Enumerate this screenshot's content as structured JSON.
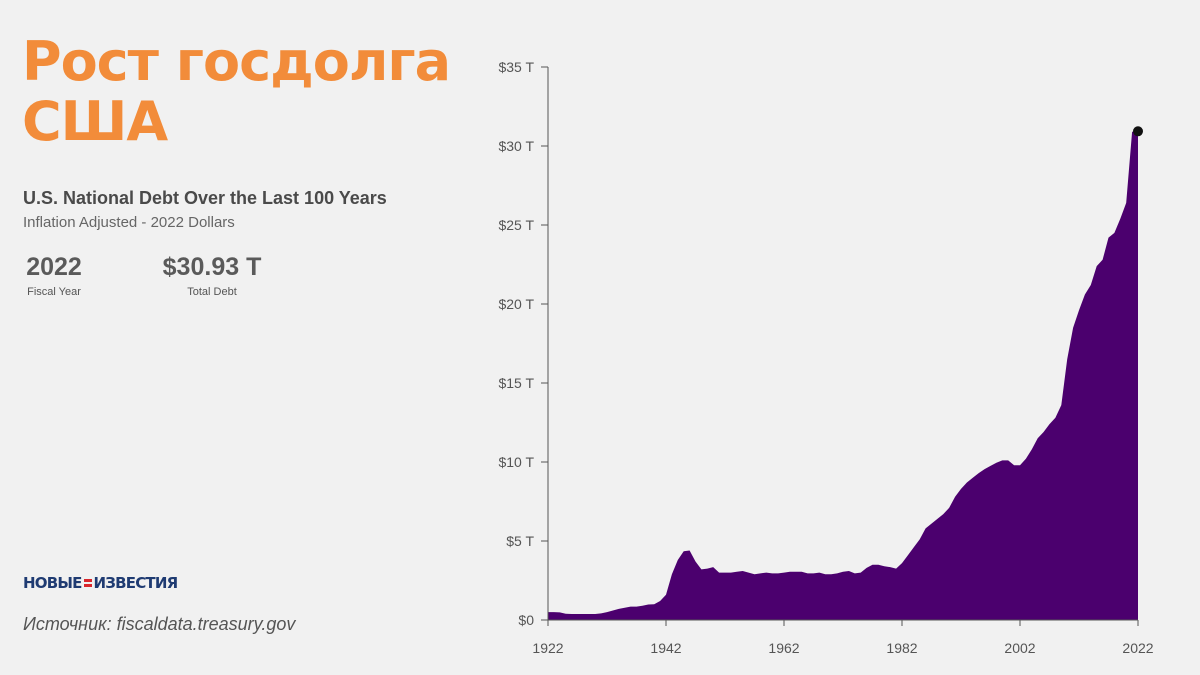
{
  "header": {
    "title_line1": "Рост госдолга",
    "title_line2": "США",
    "subtitle": "U.S. National Debt Over the Last 100 Years",
    "subtitle2": "Inflation Adjusted - 2022 Dollars"
  },
  "stats": {
    "year_value": "2022",
    "year_label": "Fiscal Year",
    "debt_value": "$30.93 T",
    "debt_label": "Total Debt"
  },
  "logo": {
    "left": "НОВЫЕ",
    "right": "ИЗВЕСТИЯ"
  },
  "source": "Источник: fiscaldata.treasury.gov",
  "colors": {
    "accent": "#f28c3a",
    "area_fill": "#4b006e",
    "highlight_point": "#111111"
  },
  "chart_data": {
    "type": "area",
    "title": "U.S. National Debt Over the Last 100 Years",
    "subtitle": "Inflation Adjusted - 2022 Dollars",
    "xlabel": "",
    "ylabel": "",
    "xlim": [
      1922,
      2022
    ],
    "ylim": [
      0,
      35
    ],
    "x_ticks": [
      {
        "value": 1922,
        "label": "1922"
      },
      {
        "value": 1942,
        "label": "1942"
      },
      {
        "value": 1962,
        "label": "1962"
      },
      {
        "value": 1982,
        "label": "1982"
      },
      {
        "value": 2002,
        "label": "2002"
      },
      {
        "value": 2022,
        "label": "2022"
      }
    ],
    "y_ticks": [
      {
        "value": 0,
        "label": "$0"
      },
      {
        "value": 5,
        "label": "$5 T"
      },
      {
        "value": 10,
        "label": "$10 T"
      },
      {
        "value": 15,
        "label": "$15 T"
      },
      {
        "value": 20,
        "label": "$20 T"
      },
      {
        "value": 25,
        "label": "$25 T"
      },
      {
        "value": 30,
        "label": "$30 T"
      },
      {
        "value": 35,
        "label": "$35 T"
      }
    ],
    "grid": false,
    "legend": "none",
    "highlight": {
      "x": 2022,
      "y": 30.93
    },
    "series": [
      {
        "x": [
          1922,
          1923,
          1924,
          1925,
          1926,
          1927,
          1928,
          1929,
          1930,
          1931,
          1932,
          1933,
          1934,
          1935,
          1936,
          1937,
          1938,
          1939,
          1940,
          1941,
          1942,
          1943,
          1944,
          1945,
          1946,
          1947,
          1948,
          1949,
          1950,
          1951,
          1952,
          1953,
          1954,
          1955,
          1956,
          1957,
          1958,
          1959,
          1960,
          1961,
          1962,
          1963,
          1964,
          1965,
          1966,
          1967,
          1968,
          1969,
          1970,
          1971,
          1972,
          1973,
          1974,
          1975,
          1976,
          1977,
          1978,
          1979,
          1980,
          1981,
          1982,
          1983,
          1984,
          1985,
          1986,
          1987,
          1988,
          1989,
          1990,
          1991,
          1992,
          1993,
          1994,
          1995,
          1996,
          1997,
          1998,
          1999,
          2000,
          2001,
          2002,
          2003,
          2004,
          2005,
          2006,
          2007,
          2008,
          2009,
          2010,
          2011,
          2012,
          2013,
          2014,
          2015,
          2016,
          2017,
          2018,
          2019,
          2020,
          2021,
          2022
        ],
        "values": [
          0.5,
          0.5,
          0.48,
          0.4,
          0.38,
          0.38,
          0.38,
          0.38,
          0.38,
          0.42,
          0.5,
          0.6,
          0.7,
          0.78,
          0.85,
          0.85,
          0.9,
          0.98,
          1.0,
          1.2,
          1.6,
          2.9,
          3.8,
          4.35,
          4.4,
          3.7,
          3.2,
          3.25,
          3.35,
          3.0,
          3.0,
          3.0,
          3.05,
          3.1,
          3.0,
          2.9,
          2.95,
          3.0,
          2.95,
          2.95,
          3.0,
          3.05,
          3.05,
          3.05,
          2.95,
          2.95,
          3.0,
          2.9,
          2.9,
          2.95,
          3.05,
          3.1,
          2.95,
          3.0,
          3.3,
          3.5,
          3.5,
          3.4,
          3.35,
          3.25,
          3.6,
          4.1,
          4.6,
          5.1,
          5.8,
          6.1,
          6.4,
          6.7,
          7.1,
          7.8,
          8.3,
          8.7,
          9.0,
          9.3,
          9.55,
          9.75,
          9.95,
          10.1,
          10.1,
          9.8,
          9.8,
          10.2,
          10.8,
          11.5,
          11.9,
          12.4,
          12.8,
          13.6,
          16.5,
          18.5,
          19.6,
          20.6,
          21.2,
          22.4,
          22.8,
          24.2,
          24.5,
          25.4,
          26.4,
          30.9,
          30.93
        ]
      }
    ]
  }
}
